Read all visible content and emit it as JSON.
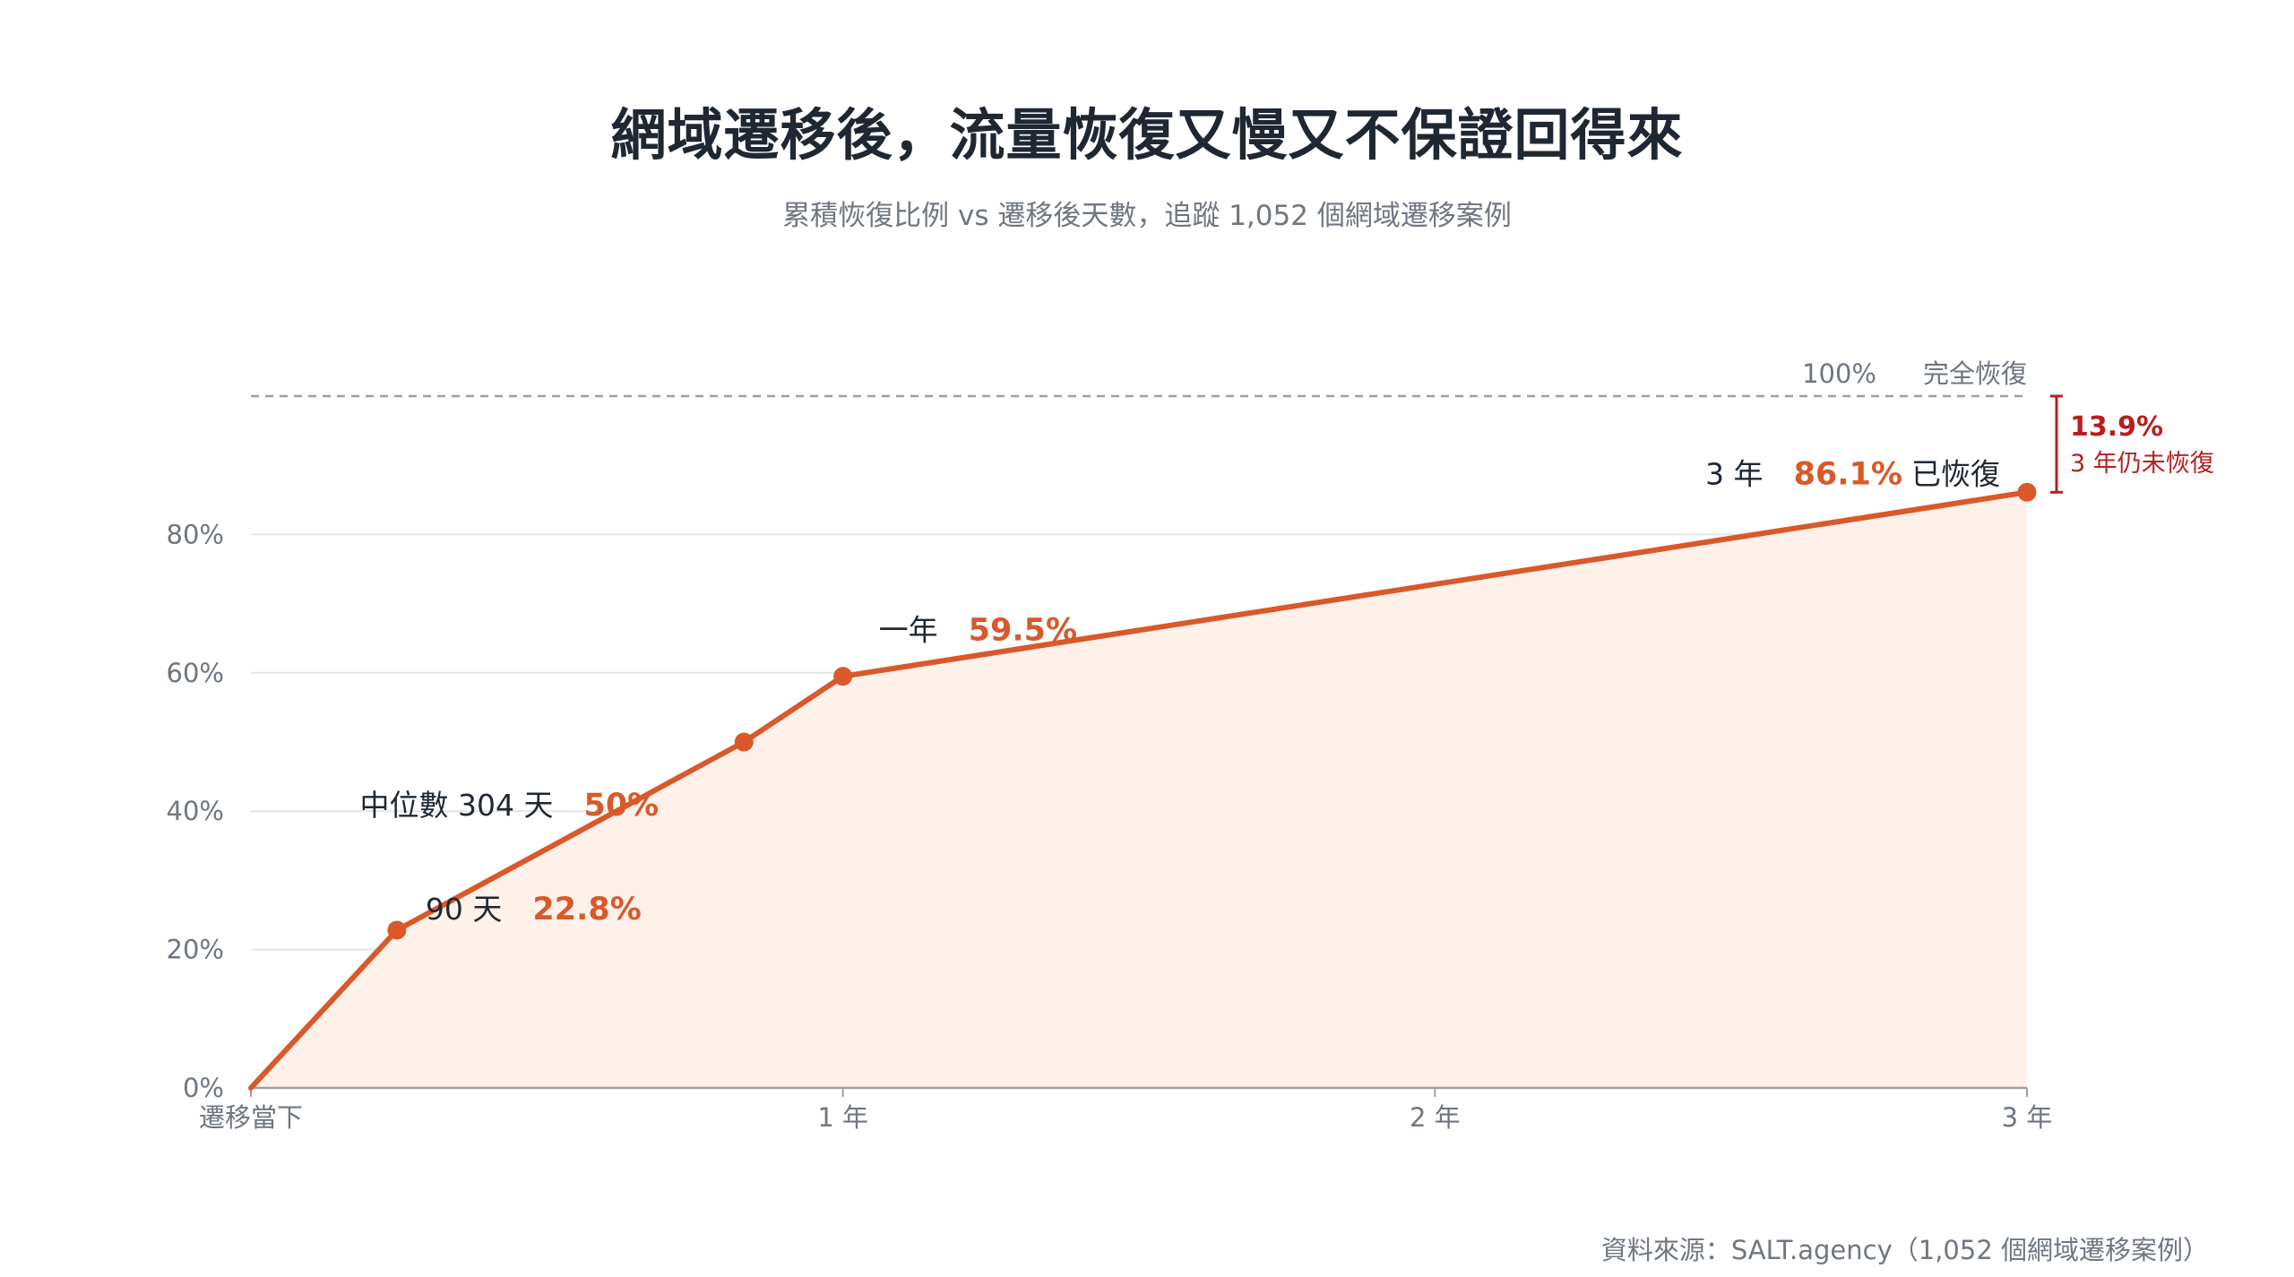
{
  "title": "網域遷移後，流量恢復又慢又不保證回得來",
  "subtitle": "累積恢復比例 vs 遷移後天數，追蹤 1,052 個網域遷移案例",
  "source": "資料來源：SALT.agency（1,052 個網域遷移案例）",
  "colors": {
    "line": "#d9592a",
    "area": "#fdf1ea",
    "grid": "#e3e5e8",
    "axis": "#9aa0a8",
    "reference": "#9aa0a8",
    "gap": "#b5201f"
  },
  "chart_data": {
    "type": "area",
    "x_unit": "days",
    "xlim": [
      0,
      1095
    ],
    "ylim": [
      0,
      100
    ],
    "x_ticks": [
      {
        "value": 0,
        "label": "遷移當下"
      },
      {
        "value": 365,
        "label": "1 年"
      },
      {
        "value": 730,
        "label": "2 年"
      },
      {
        "value": 1095,
        "label": "3 年"
      }
    ],
    "y_ticks": [
      {
        "value": 0,
        "label": "0%"
      },
      {
        "value": 20,
        "label": "20%"
      },
      {
        "value": 40,
        "label": "40%"
      },
      {
        "value": 60,
        "label": "60%"
      },
      {
        "value": 80,
        "label": "80%"
      }
    ],
    "points": [
      {
        "x": 0,
        "y": 0
      },
      {
        "x": 90,
        "y": 22.8
      },
      {
        "x": 304,
        "y": 50
      },
      {
        "x": 365,
        "y": 59.5
      },
      {
        "x": 1095,
        "y": 86.1
      }
    ],
    "annotations": [
      {
        "x": 90,
        "y": 22.8,
        "label": "90 天",
        "value": "22.8%",
        "suffix": ""
      },
      {
        "x": 304,
        "y": 50,
        "label": "中位數 304 天",
        "value": "50%",
        "suffix": ""
      },
      {
        "x": 365,
        "y": 59.5,
        "label": "一年",
        "value": "59.5%",
        "suffix": ""
      },
      {
        "x": 1095,
        "y": 86.1,
        "label": "3 年",
        "value": "86.1%",
        "suffix": "已恢復"
      }
    ],
    "reference_line": {
      "y": 100,
      "value_label": "100%",
      "text": "完全恢復"
    },
    "gap": {
      "from": 86.1,
      "to": 100,
      "value": "13.9%",
      "text": "3 年仍未恢復"
    },
    "grid": true,
    "legend": "none"
  }
}
